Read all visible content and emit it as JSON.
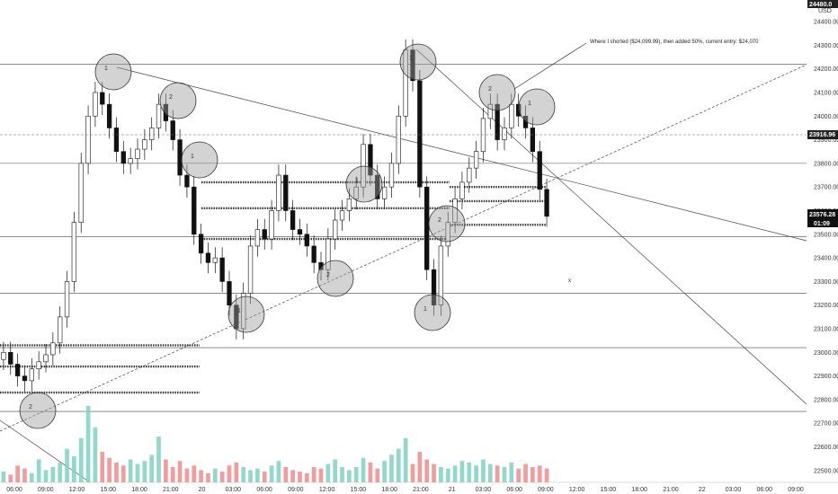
{
  "chart_data": {
    "type": "candlestick",
    "currency": "USD",
    "y_ticks": [
      24400,
      24300,
      24200,
      24100,
      24000,
      23900,
      23800,
      23700,
      23600,
      23500,
      23400,
      23300,
      23200,
      23100,
      23000,
      22900,
      22800,
      22700,
      22600,
      22500
    ],
    "x_ticks": [
      "06:00",
      "09:00",
      "12:00",
      "15:00",
      "18:00",
      "21:00",
      "20",
      "03:00",
      "06:00",
      "09:00",
      "12:00",
      "15:00",
      "18:00",
      "21:00",
      "21",
      "03:00",
      "06:00",
      "09:00",
      "12:00",
      "15:00",
      "18:00",
      "21:00",
      "22",
      "03:00",
      "06:00",
      "09:00"
    ],
    "ylim": [
      22450,
      24480
    ],
    "price_tags": {
      "top": "24480.0",
      "dashed": "23916.96",
      "current": "23576.28",
      "countdown": "01:09"
    },
    "annotation": "Where I shorted ($24,099.99), then added 50%, current entry: $24,070",
    "horizontal_levels": [
      24220,
      23800,
      23490,
      23250,
      23020,
      22750
    ],
    "circle_labels": [
      "1",
      "2",
      "1",
      "2",
      "1",
      "2",
      "1",
      "1",
      "2",
      "1",
      "2",
      "1"
    ],
    "price_series": [
      23000,
      22950,
      22900,
      22880,
      22930,
      22960,
      22990,
      23040,
      23150,
      23300,
      23550,
      23800,
      24000,
      24100,
      24050,
      23950,
      23850,
      23800,
      23820,
      23860,
      23900,
      23950,
      24050,
      23980,
      23900,
      23750,
      23700,
      23500,
      23420,
      23380,
      23400,
      23300,
      23200,
      23100,
      23250,
      23450,
      23520,
      23480,
      23600,
      23750,
      23600,
      23520,
      23500,
      23450,
      23380,
      23350,
      23480,
      23560,
      23600,
      23650,
      23700,
      23880,
      23750,
      23650,
      23700,
      23800,
      24000,
      24280,
      24150,
      23700,
      23350,
      23200,
      23450,
      23550,
      23650,
      23720,
      23780,
      23850,
      23990,
      24050,
      23900,
      23950,
      24050,
      24000,
      23950,
      23850,
      23690,
      23576
    ],
    "volumes": [
      14,
      10,
      22,
      18,
      12,
      30,
      16,
      20,
      26,
      44,
      34,
      58,
      100,
      72,
      40,
      32,
      26,
      22,
      30,
      24,
      28,
      36,
      60,
      30,
      20,
      28,
      18,
      22,
      16,
      12,
      18,
      14,
      22,
      26,
      20,
      16,
      18,
      14,
      22,
      28,
      20,
      16,
      14,
      12,
      20,
      18,
      24,
      30,
      20,
      16,
      20,
      32,
      26,
      18,
      28,
      36,
      44,
      58,
      24,
      40,
      30,
      24,
      20,
      18,
      22,
      28,
      26,
      22,
      30,
      24,
      22,
      20,
      26,
      18,
      24,
      20,
      22,
      18
    ]
  }
}
